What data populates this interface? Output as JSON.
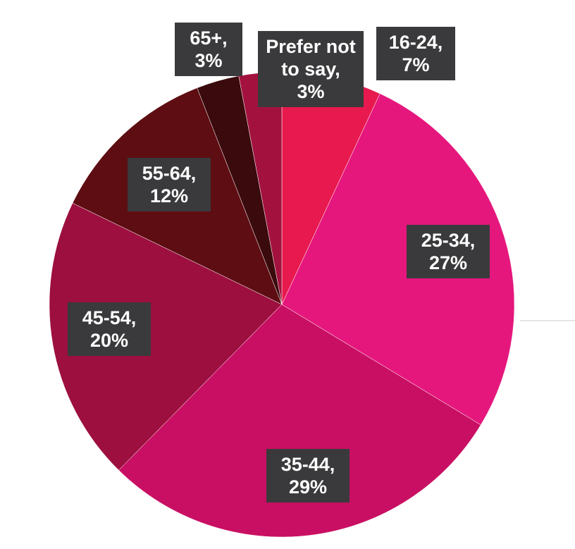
{
  "chart_data": {
    "type": "pie",
    "categories": [
      "16-24,",
      "25-34,",
      "35-44,",
      "45-54,",
      "55-64,",
      "65+,",
      "Prefer not to say,"
    ],
    "values": [
      7,
      27,
      29,
      20,
      12,
      3,
      3
    ],
    "value_labels": [
      "7%",
      "27%",
      "29%",
      "20%",
      "12%",
      "3%",
      "3%"
    ],
    "colors": [
      "#e8194e",
      "#e5177d",
      "#c90f63",
      "#9c0f3f",
      "#5e0d12",
      "#3a0a0c",
      "#a3123f"
    ]
  }
}
